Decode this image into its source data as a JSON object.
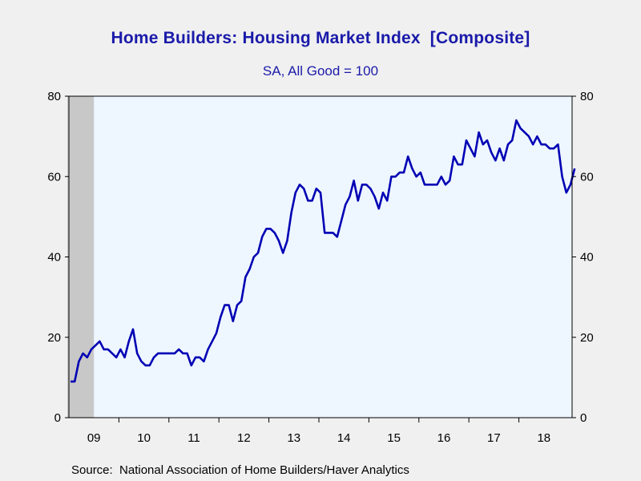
{
  "title": "Home Builders: Housing Market Index  [Composite]",
  "subtitle": "SA, All Good = 100",
  "source": "Source:  National Association of Home Builders/Haver Analytics",
  "colors": {
    "line": "#0000b4",
    "plot_background": "#eef6ff",
    "recession_shade": "#c8c8c8",
    "page_background": "#f0f0f0",
    "title_text": "#1a1aaa"
  },
  "chart_data": {
    "type": "line",
    "title": "Home Builders: Housing Market Index  [Composite]",
    "subtitle": "SA, All Good = 100",
    "ylim": [
      0,
      80
    ],
    "y_ticks": [
      0,
      20,
      40,
      60,
      80
    ],
    "y_ticks_right": [
      0,
      20,
      40,
      60,
      80
    ],
    "x_range": [
      "2009-01",
      "2018-12"
    ],
    "x_tick_labels": [
      "09",
      "10",
      "11",
      "12",
      "13",
      "14",
      "15",
      "16",
      "17",
      "18"
    ],
    "grid": false,
    "recession_shading": {
      "start": "2009-01",
      "end": "2009-06"
    },
    "series": [
      {
        "frequency": "monthly",
        "start": "2009-01",
        "values": [
          9,
          9,
          14,
          16,
          15,
          17,
          18,
          19,
          17,
          17,
          16,
          15,
          17,
          15,
          19,
          22,
          16,
          14,
          13,
          13,
          15,
          16,
          16,
          16,
          16,
          16,
          17,
          16,
          16,
          13,
          15,
          15,
          14,
          17,
          19,
          21,
          25,
          28,
          28,
          24,
          28,
          29,
          35,
          37,
          40,
          41,
          45,
          47,
          47,
          46,
          44,
          41,
          44,
          51,
          56,
          58,
          57,
          54,
          54,
          57,
          56,
          46,
          46,
          46,
          45,
          49,
          53,
          55,
          59,
          54,
          58,
          58,
          57,
          55,
          52,
          56,
          54,
          60,
          60,
          61,
          61,
          65,
          62,
          60,
          61,
          58,
          58,
          58,
          58,
          60,
          58,
          59,
          65,
          63,
          63,
          69,
          67,
          65,
          71,
          68,
          69,
          66,
          64,
          67,
          64,
          68,
          69,
          74,
          72,
          71,
          70,
          68,
          70,
          68,
          68,
          67,
          67,
          68,
          60,
          56,
          58,
          62
        ]
      }
    ]
  }
}
